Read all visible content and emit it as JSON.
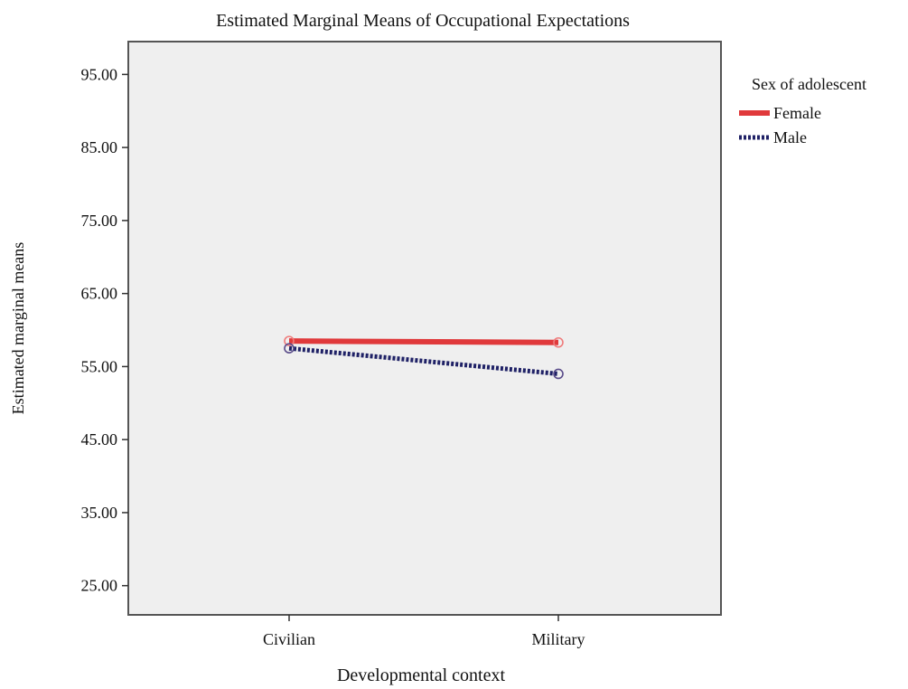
{
  "chart_data": {
    "type": "line",
    "title": "Estimated Marginal Means of Occupational Expectations",
    "xlabel": "Developmental context",
    "ylabel": "Estimated marginal means",
    "categories": [
      "Civilian",
      "Military"
    ],
    "yticks": [
      "25.00",
      "35.00",
      "45.00",
      "55.00",
      "65.00",
      "75.00",
      "85.00",
      "95.00"
    ],
    "ylim": [
      21,
      99.5
    ],
    "grid": false,
    "legend_position": "right",
    "legend_title": "Sex of adolescent",
    "series": [
      {
        "name": "Female",
        "values": [
          58.5,
          58.3
        ],
        "color": "#e0393b",
        "style": "solid"
      },
      {
        "name": "Male",
        "values": [
          57.5,
          54.0
        ],
        "color": "#1f2166",
        "style": "dotted"
      }
    ],
    "plot_background": "#efefef",
    "marker": "circle-open"
  }
}
